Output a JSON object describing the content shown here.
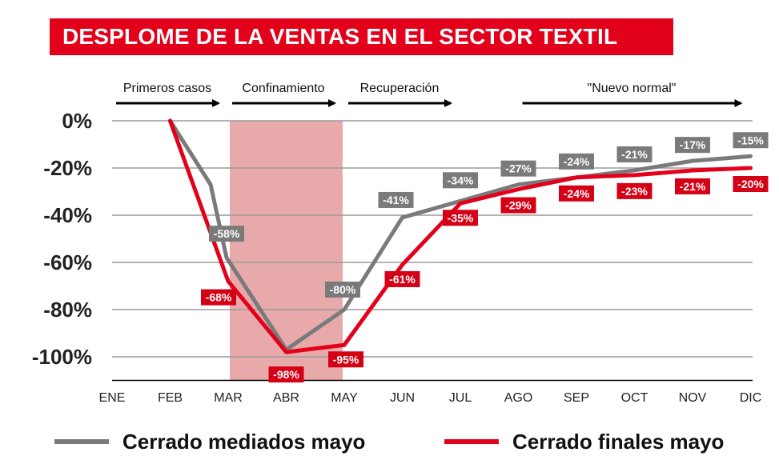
{
  "title": "DESPLOME DE LA VENTAS EN EL SECTOR TEXTIL",
  "colors": {
    "title_bg": "#e3001b",
    "grey_series": "#7a7a7a",
    "red_series": "#e3001b",
    "lockdown_band": "#e8a9aa",
    "grid": "#9a9a9a",
    "grey_label_bg": "#7a7a7a",
    "red_label_bg": "#d40015"
  },
  "chart_data": {
    "type": "line",
    "title": "DESPLOME DE LA VENTAS EN EL SECTOR TEXTIL",
    "categories": [
      "ENE",
      "FEB",
      "MAR",
      "ABR",
      "MAY",
      "JUN",
      "JUL",
      "AGO",
      "SEP",
      "OCT",
      "NOV",
      "DIC"
    ],
    "y_ticks": [
      0,
      -20,
      -40,
      -60,
      -80,
      -100
    ],
    "y_tick_labels": [
      "0%",
      "-20%",
      "-40%",
      "-60%",
      "-80%",
      "-100%"
    ],
    "ylim": [
      -110,
      0
    ],
    "grid": true,
    "legend_position": "bottom",
    "series": [
      {
        "name": "Cerrado mediados mayo",
        "color": "#7a7a7a",
        "points": [
          {
            "month": "FEB",
            "value": 0
          },
          {
            "month": "MAR",
            "value": -27
          },
          {
            "month": "MAR",
            "value": -58
          },
          {
            "month": "ABR",
            "value": -97
          },
          {
            "month": "MAY",
            "value": -80
          },
          {
            "month": "JUN",
            "value": -41
          },
          {
            "month": "JUL",
            "value": -34
          },
          {
            "month": "AGO",
            "value": -27
          },
          {
            "month": "SEP",
            "value": -24
          },
          {
            "month": "OCT",
            "value": -21
          },
          {
            "month": "NOV",
            "value": -17
          },
          {
            "month": "DIC",
            "value": -15
          }
        ],
        "data_labels": [
          {
            "month": "MAR",
            "value": -58,
            "text": "-58%"
          },
          {
            "month": "MAY",
            "value": -80,
            "text": "-80%"
          },
          {
            "month": "JUN",
            "value": -41,
            "text": "-41%"
          },
          {
            "month": "JUL",
            "value": -34,
            "text": "-34%"
          },
          {
            "month": "AGO",
            "value": -27,
            "text": "-27%"
          },
          {
            "month": "SEP",
            "value": -24,
            "text": "-24%"
          },
          {
            "month": "OCT",
            "value": -21,
            "text": "-21%"
          },
          {
            "month": "NOV",
            "value": -17,
            "text": "-17%"
          },
          {
            "month": "DIC",
            "value": -15,
            "text": "-15%"
          }
        ]
      },
      {
        "name": "Cerrado finales mayo",
        "color": "#e3001b",
        "points": [
          {
            "month": "FEB",
            "value": 0
          },
          {
            "month": "MAR",
            "value": -68
          },
          {
            "month": "ABR",
            "value": -98
          },
          {
            "month": "MAY",
            "value": -95
          },
          {
            "month": "JUN",
            "value": -61
          },
          {
            "month": "JUL",
            "value": -35
          },
          {
            "month": "AGO",
            "value": -29
          },
          {
            "month": "SEP",
            "value": -24
          },
          {
            "month": "OCT",
            "value": -23
          },
          {
            "month": "NOV",
            "value": -21
          },
          {
            "month": "DIC",
            "value": -20
          }
        ],
        "data_labels": [
          {
            "month": "MAR",
            "value": -68,
            "text": "-68%"
          },
          {
            "month": "ABR",
            "value": -98,
            "text": "-98%"
          },
          {
            "month": "MAY",
            "value": -95,
            "text": "-95%"
          },
          {
            "month": "JUN",
            "value": -61,
            "text": "-61%"
          },
          {
            "month": "JUL",
            "value": -35,
            "text": "-35%"
          },
          {
            "month": "AGO",
            "value": -29,
            "text": "-29%"
          },
          {
            "month": "SEP",
            "value": -24,
            "text": "-24%"
          },
          {
            "month": "OCT",
            "value": -23,
            "text": "-23%"
          },
          {
            "month": "NOV",
            "value": -21,
            "text": "-21%"
          },
          {
            "month": "DIC",
            "value": -20,
            "text": "-20%"
          }
        ]
      }
    ],
    "phases": [
      {
        "label": "Primeros casos",
        "from": "ENE",
        "to": "MAR"
      },
      {
        "label": "Confinamiento",
        "from": "MAR",
        "to": "MAY"
      },
      {
        "label": "Recuperación",
        "from": "MAY",
        "to": "JUL"
      },
      {
        "label": "\"Nuevo normal\"",
        "from": "AGO",
        "to": "DIC"
      }
    ],
    "shaded_region": {
      "from": "MAR",
      "to": "MAY",
      "label": "Confinamiento"
    }
  }
}
